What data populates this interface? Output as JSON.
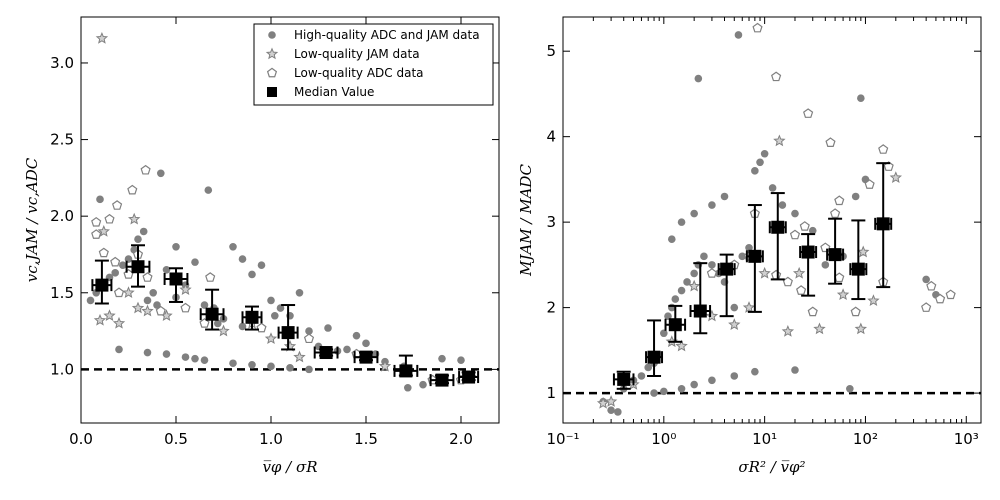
{
  "chart_data": [
    {
      "type": "scatter",
      "xlabel": "v̅φ / σR",
      "ylabel": "vc,JAM / vc,ADC",
      "xlim": [
        0.0,
        2.2
      ],
      "ylim": [
        0.65,
        3.3
      ],
      "xscale": "linear",
      "xticks": [
        0.0,
        0.5,
        1.0,
        1.5,
        2.0
      ],
      "xtick_labels": [
        "0.0",
        "0.5",
        "1.0",
        "1.5",
        "2.0"
      ],
      "yticks": [
        1.0,
        1.5,
        2.0,
        2.5,
        3.0
      ],
      "ytick_labels": [
        "1.0",
        "1.5",
        "2.0",
        "2.5",
        "3.0"
      ],
      "reference_line": 1.0,
      "legend": {
        "placement": "top-right",
        "entries": [
          "High-quality ADC and JAM data",
          "Low-quality JAM data",
          "Low-quality ADC data",
          "Median Value"
        ]
      },
      "series": [
        {
          "name": "High-quality ADC and JAM data",
          "marker": "circle",
          "points": [
            [
              0.1,
              2.11
            ],
            [
              0.42,
              2.28
            ],
            [
              0.67,
              2.17
            ],
            [
              0.05,
              1.45
            ],
            [
              0.08,
              1.5
            ],
            [
              0.12,
              1.55
            ],
            [
              0.15,
              1.6
            ],
            [
              0.18,
              1.63
            ],
            [
              0.22,
              1.68
            ],
            [
              0.25,
              1.72
            ],
            [
              0.28,
              1.78
            ],
            [
              0.3,
              1.85
            ],
            [
              0.33,
              1.9
            ],
            [
              0.35,
              1.45
            ],
            [
              0.38,
              1.5
            ],
            [
              0.4,
              1.42
            ],
            [
              0.45,
              1.65
            ],
            [
              0.5,
              1.8
            ],
            [
              0.55,
              1.55
            ],
            [
              0.6,
              1.7
            ],
            [
              0.65,
              1.42
            ],
            [
              0.7,
              1.4
            ],
            [
              0.75,
              1.33
            ],
            [
              0.8,
              1.8
            ],
            [
              0.85,
              1.72
            ],
            [
              0.9,
              1.62
            ],
            [
              0.95,
              1.68
            ],
            [
              1.0,
              1.45
            ],
            [
              1.05,
              1.4
            ],
            [
              1.1,
              1.35
            ],
            [
              1.15,
              1.5
            ],
            [
              1.2,
              1.25
            ],
            [
              1.25,
              1.15
            ],
            [
              1.3,
              1.27
            ],
            [
              1.35,
              1.12
            ],
            [
              1.4,
              1.13
            ],
            [
              1.45,
              1.22
            ],
            [
              1.5,
              1.17
            ],
            [
              1.55,
              1.1
            ],
            [
              1.6,
              1.05
            ],
            [
              1.7,
              1.02
            ],
            [
              1.8,
              0.9
            ],
            [
              1.9,
              1.07
            ],
            [
              2.0,
              1.06
            ],
            [
              0.2,
              1.13
            ],
            [
              0.35,
              1.11
            ],
            [
              0.45,
              1.1
            ],
            [
              0.55,
              1.08
            ],
            [
              0.6,
              1.07
            ],
            [
              0.65,
              1.06
            ],
            [
              0.8,
              1.04
            ],
            [
              0.9,
              1.03
            ],
            [
              1.0,
              1.02
            ],
            [
              1.1,
              1.01
            ],
            [
              1.2,
              1.0
            ],
            [
              1.72,
              0.88
            ],
            [
              0.5,
              1.47
            ],
            [
              0.72,
              1.3
            ],
            [
              0.85,
              1.28
            ],
            [
              1.02,
              1.35
            ]
          ]
        },
        {
          "name": "Low-quality JAM data",
          "marker": "star",
          "points": [
            [
              0.11,
              3.16
            ],
            [
              0.1,
              1.32
            ],
            [
              0.15,
              1.35
            ],
            [
              0.2,
              1.3
            ],
            [
              0.25,
              1.5
            ],
            [
              0.3,
              1.4
            ],
            [
              0.35,
              1.38
            ],
            [
              0.45,
              1.35
            ],
            [
              0.55,
              1.52
            ],
            [
              0.75,
              1.25
            ],
            [
              0.9,
              1.3
            ],
            [
              1.0,
              1.2
            ],
            [
              1.1,
              1.15
            ],
            [
              1.15,
              1.08
            ],
            [
              1.6,
              1.02
            ],
            [
              2.05,
              0.95
            ],
            [
              0.28,
              1.98
            ],
            [
              0.12,
              1.9
            ]
          ]
        },
        {
          "name": "Low-quality ADC data",
          "marker": "pentagon",
          "points": [
            [
              0.27,
              2.17
            ],
            [
              0.34,
              2.3
            ],
            [
              0.19,
              2.07
            ],
            [
              0.15,
              1.98
            ],
            [
              0.08,
              1.96
            ],
            [
              0.08,
              1.88
            ],
            [
              0.12,
              1.76
            ],
            [
              0.18,
              1.7
            ],
            [
              0.25,
              1.62
            ],
            [
              0.3,
              1.75
            ],
            [
              0.35,
              1.6
            ],
            [
              0.2,
              1.5
            ],
            [
              0.42,
              1.38
            ],
            [
              0.68,
              1.6
            ],
            [
              0.55,
              1.4
            ],
            [
              0.65,
              1.3
            ],
            [
              0.95,
              1.27
            ],
            [
              1.2,
              1.2
            ],
            [
              1.45,
              1.1
            ],
            [
              1.85,
              0.93
            ],
            [
              2.0,
              0.93
            ]
          ]
        }
      ],
      "median": {
        "name": "Median Value",
        "points": [
          {
            "x": 0.11,
            "y": 1.55,
            "xerr": 0.05,
            "ylow": 1.43,
            "yhigh": 1.71
          },
          {
            "x": 0.3,
            "y": 1.67,
            "xerr": 0.06,
            "ylow": 1.54,
            "yhigh": 1.81
          },
          {
            "x": 0.5,
            "y": 1.59,
            "xerr": 0.06,
            "ylow": 1.44,
            "yhigh": 1.66
          },
          {
            "x": 0.69,
            "y": 1.36,
            "xerr": 0.06,
            "ylow": 1.26,
            "yhigh": 1.52
          },
          {
            "x": 0.9,
            "y": 1.34,
            "xerr": 0.05,
            "ylow": 1.26,
            "yhigh": 1.41
          },
          {
            "x": 1.09,
            "y": 1.24,
            "xerr": 0.05,
            "ylow": 1.13,
            "yhigh": 1.42
          },
          {
            "x": 1.29,
            "y": 1.11,
            "xerr": 0.06,
            "ylow": 1.09,
            "yhigh": 1.13
          },
          {
            "x": 1.5,
            "y": 1.08,
            "xerr": 0.06,
            "ylow": 1.06,
            "yhigh": 1.11
          },
          {
            "x": 1.71,
            "y": 0.99,
            "xerr": 0.06,
            "ylow": 0.96,
            "yhigh": 1.09
          },
          {
            "x": 1.9,
            "y": 0.93,
            "xerr": 0.06,
            "ylow": 0.91,
            "yhigh": 0.96
          },
          {
            "x": 2.04,
            "y": 0.95,
            "xerr": 0.05,
            "ylow": 0.93,
            "yhigh": 0.98
          }
        ]
      }
    },
    {
      "type": "scatter",
      "xlabel": "σR² / v̅φ²",
      "ylabel": "MJAM / MADC",
      "xlim": [
        0.1,
        1400
      ],
      "ylim": [
        0.65,
        5.4
      ],
      "xscale": "log",
      "xticks": [
        0.1,
        1,
        10,
        100,
        1000
      ],
      "xtick_labels": [
        "10⁻¹",
        "10⁰",
        "10¹",
        "10²",
        "10³"
      ],
      "yticks": [
        1,
        2,
        3,
        4,
        5
      ],
      "ytick_labels": [
        "1",
        "2",
        "3",
        "4",
        "5"
      ],
      "reference_line": 1.0,
      "series": [
        {
          "name": "High-quality ADC and JAM data",
          "marker": "circle",
          "points": [
            [
              0.25,
              0.9
            ],
            [
              0.3,
              0.8
            ],
            [
              0.35,
              0.78
            ],
            [
              0.4,
              1.05
            ],
            [
              0.5,
              1.15
            ],
            [
              0.6,
              1.2
            ],
            [
              0.7,
              1.3
            ],
            [
              0.8,
              1.35
            ],
            [
              0.9,
              1.45
            ],
            [
              1.0,
              1.7
            ],
            [
              1.1,
              1.9
            ],
            [
              1.2,
              2.0
            ],
            [
              1.3,
              2.1
            ],
            [
              1.5,
              2.2
            ],
            [
              1.7,
              2.3
            ],
            [
              2.0,
              2.4
            ],
            [
              2.2,
              2.5
            ],
            [
              2.5,
              2.6
            ],
            [
              3.0,
              2.5
            ],
            [
              3.5,
              2.4
            ],
            [
              4.0,
              2.3
            ],
            [
              5.0,
              2.0
            ],
            [
              6.0,
              2.6
            ],
            [
              7.0,
              2.7
            ],
            [
              8.0,
              3.6
            ],
            [
              9.0,
              3.7
            ],
            [
              10.0,
              3.8
            ],
            [
              12.0,
              3.4
            ],
            [
              15.0,
              3.2
            ],
            [
              20.0,
              3.1
            ],
            [
              30.0,
              2.9
            ],
            [
              40.0,
              2.5
            ],
            [
              60.0,
              2.6
            ],
            [
              80.0,
              3.3
            ],
            [
              100.0,
              3.5
            ],
            [
              5.5,
              5.19
            ],
            [
              2.2,
              4.68
            ],
            [
              90.0,
              4.45
            ],
            [
              0.8,
              1.0
            ],
            [
              1.0,
              1.02
            ],
            [
              1.5,
              1.05
            ],
            [
              2.0,
              1.1
            ],
            [
              3.0,
              1.15
            ],
            [
              5.0,
              1.2
            ],
            [
              8.0,
              1.25
            ],
            [
              20.0,
              1.27
            ],
            [
              70.0,
              1.05
            ],
            [
              400.0,
              2.33
            ],
            [
              500.0,
              2.15
            ],
            [
              1.2,
              2.8
            ],
            [
              1.5,
              3.0
            ],
            [
              2.0,
              3.1
            ],
            [
              3.0,
              3.2
            ],
            [
              4.0,
              3.3
            ]
          ]
        },
        {
          "name": "Low-quality JAM data",
          "marker": "star",
          "points": [
            [
              0.25,
              0.88
            ],
            [
              0.3,
              0.9
            ],
            [
              0.5,
              1.1
            ],
            [
              0.8,
              1.4
            ],
            [
              1.2,
              1.6
            ],
            [
              1.5,
              1.55
            ],
            [
              2.0,
              2.25
            ],
            [
              3.0,
              1.9
            ],
            [
              5.0,
              1.8
            ],
            [
              7.0,
              2.0
            ],
            [
              10.0,
              2.4
            ],
            [
              14.0,
              3.95
            ],
            [
              17.0,
              1.72
            ],
            [
              22.0,
              2.4
            ],
            [
              35.0,
              1.75
            ],
            [
              60.0,
              2.15
            ],
            [
              90.0,
              1.75
            ],
            [
              95.0,
              2.65
            ],
            [
              120.0,
              2.08
            ],
            [
              200.0,
              3.52
            ]
          ]
        },
        {
          "name": "Low-quality ADC data",
          "marker": "pentagon",
          "points": [
            [
              8.5,
              5.27
            ],
            [
              13.0,
              4.7
            ],
            [
              27.0,
              4.27
            ],
            [
              45.0,
              3.93
            ],
            [
              150.0,
              3.85
            ],
            [
              170.0,
              3.65
            ],
            [
              110.0,
              3.44
            ],
            [
              55.0,
              3.25
            ],
            [
              50.0,
              3.1
            ],
            [
              8.0,
              3.1
            ],
            [
              7.0,
              2.6
            ],
            [
              13.0,
              2.38
            ],
            [
              17.0,
              2.3
            ],
            [
              23.0,
              2.2
            ],
            [
              30.0,
              1.95
            ],
            [
              80.0,
              1.95
            ],
            [
              150.0,
              2.3
            ],
            [
              400.0,
              2.0
            ],
            [
              450.0,
              2.25
            ],
            [
              550.0,
              2.1
            ],
            [
              700.0,
              2.15
            ],
            [
              3.0,
              2.4
            ],
            [
              5.0,
              2.5
            ],
            [
              20.0,
              2.85
            ],
            [
              25.0,
              2.95
            ],
            [
              40.0,
              2.7
            ],
            [
              55.0,
              2.35
            ]
          ]
        }
      ],
      "median": {
        "name": "Median Value",
        "points": [
          {
            "x": 0.4,
            "y": 1.16,
            "xerr_factor": 1.25,
            "ylow": 1.05,
            "yhigh": 1.25
          },
          {
            "x": 0.8,
            "y": 1.42,
            "xerr_factor": 1.2,
            "ylow": 1.2,
            "yhigh": 1.85
          },
          {
            "x": 1.3,
            "y": 1.8,
            "xerr_factor": 1.25,
            "ylow": 1.6,
            "yhigh": 2.02
          },
          {
            "x": 2.3,
            "y": 1.96,
            "xerr_factor": 1.25,
            "ylow": 1.7,
            "yhigh": 2.52
          },
          {
            "x": 4.2,
            "y": 2.45,
            "xerr_factor": 1.2,
            "ylow": 1.9,
            "yhigh": 2.62
          },
          {
            "x": 8.0,
            "y": 2.6,
            "xerr_factor": 1.2,
            "ylow": 1.95,
            "yhigh": 3.2
          },
          {
            "x": 13.5,
            "y": 2.94,
            "xerr_factor": 1.2,
            "ylow": 2.33,
            "yhigh": 3.34
          },
          {
            "x": 27.0,
            "y": 2.65,
            "xerr_factor": 1.2,
            "ylow": 2.14,
            "yhigh": 2.86
          },
          {
            "x": 50.0,
            "y": 2.62,
            "xerr_factor": 1.2,
            "ylow": 2.28,
            "yhigh": 3.04
          },
          {
            "x": 85.0,
            "y": 2.45,
            "xerr_factor": 1.2,
            "ylow": 2.1,
            "yhigh": 3.02
          },
          {
            "x": 150.0,
            "y": 2.98,
            "xerr_factor": 1.2,
            "ylow": 2.24,
            "yhigh": 3.69
          }
        ]
      }
    }
  ]
}
